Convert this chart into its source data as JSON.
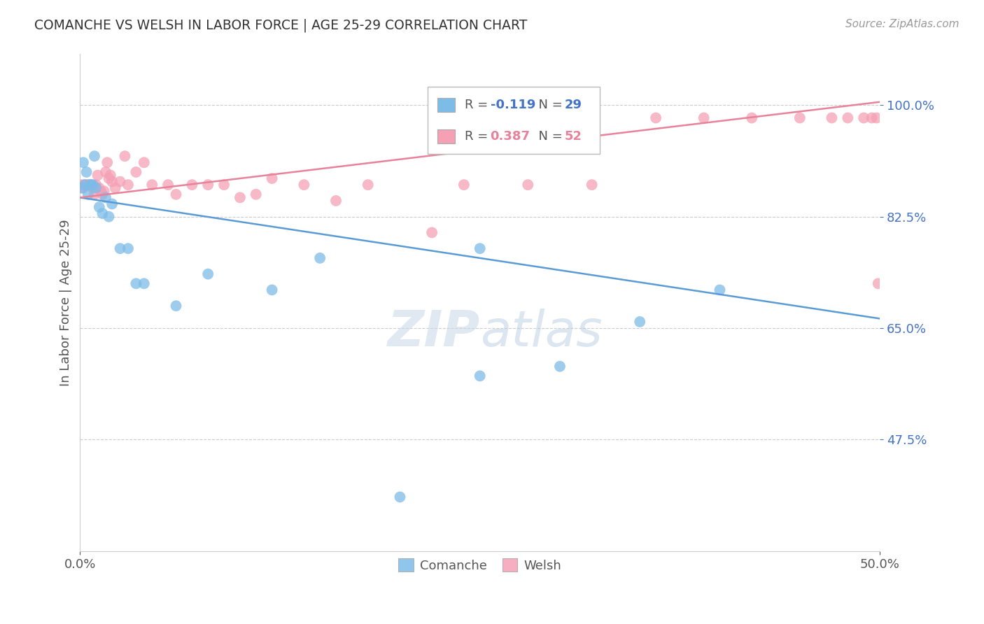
{
  "title": "COMANCHE VS WELSH IN LABOR FORCE | AGE 25-29 CORRELATION CHART",
  "source": "Source: ZipAtlas.com",
  "ylabel": "In Labor Force | Age 25-29",
  "ytick_labels": [
    "100.0%",
    "82.5%",
    "65.0%",
    "47.5%"
  ],
  "ytick_values": [
    1.0,
    0.825,
    0.65,
    0.475
  ],
  "xlim": [
    0.0,
    0.5
  ],
  "ylim": [
    0.3,
    1.08
  ],
  "legend_comanche_R": "-0.119",
  "legend_comanche_N": "29",
  "legend_welsh_R": "0.387",
  "legend_welsh_N": "52",
  "comanche_color": "#7dbce8",
  "welsh_color": "#f5a0b5",
  "comanche_line_color": "#5b9bd5",
  "welsh_line_color": "#e8829a",
  "background_color": "#ffffff",
  "comanche_x": [
    0.001,
    0.002,
    0.003,
    0.004,
    0.005,
    0.006,
    0.007,
    0.008,
    0.009,
    0.01,
    0.012,
    0.014,
    0.016,
    0.018,
    0.02,
    0.025,
    0.03,
    0.035,
    0.04,
    0.06,
    0.08,
    0.12,
    0.2,
    0.25,
    0.3,
    0.35,
    0.4,
    0.25,
    0.15
  ],
  "comanche_y": [
    0.87,
    0.91,
    0.875,
    0.895,
    0.86,
    0.875,
    0.875,
    0.875,
    0.92,
    0.87,
    0.84,
    0.83,
    0.855,
    0.825,
    0.845,
    0.775,
    0.775,
    0.72,
    0.72,
    0.685,
    0.735,
    0.71,
    0.385,
    0.575,
    0.59,
    0.66,
    0.71,
    0.775,
    0.76
  ],
  "welsh_x": [
    0.001,
    0.002,
    0.003,
    0.004,
    0.005,
    0.006,
    0.007,
    0.008,
    0.009,
    0.01,
    0.011,
    0.012,
    0.013,
    0.014,
    0.015,
    0.016,
    0.017,
    0.018,
    0.019,
    0.02,
    0.022,
    0.025,
    0.028,
    0.03,
    0.035,
    0.04,
    0.045,
    0.055,
    0.06,
    0.07,
    0.08,
    0.09,
    0.1,
    0.11,
    0.12,
    0.14,
    0.16,
    0.18,
    0.22,
    0.24,
    0.28,
    0.32,
    0.36,
    0.39,
    0.42,
    0.45,
    0.47,
    0.48,
    0.49,
    0.495,
    0.498,
    0.499
  ],
  "welsh_y": [
    0.875,
    0.87,
    0.875,
    0.875,
    0.875,
    0.875,
    0.875,
    0.87,
    0.86,
    0.875,
    0.89,
    0.87,
    0.865,
    0.86,
    0.865,
    0.895,
    0.91,
    0.885,
    0.89,
    0.88,
    0.87,
    0.88,
    0.92,
    0.875,
    0.895,
    0.91,
    0.875,
    0.875,
    0.86,
    0.875,
    0.875,
    0.875,
    0.855,
    0.86,
    0.885,
    0.875,
    0.85,
    0.875,
    0.8,
    0.875,
    0.875,
    0.875,
    0.98,
    0.98,
    0.98,
    0.98,
    0.98,
    0.98,
    0.98,
    0.98,
    0.98,
    0.72
  ],
  "comanche_line_x": [
    0.0,
    0.5
  ],
  "comanche_line_y": [
    0.855,
    0.665
  ],
  "welsh_line_x": [
    0.0,
    0.5
  ],
  "welsh_line_y": [
    0.855,
    1.005
  ]
}
